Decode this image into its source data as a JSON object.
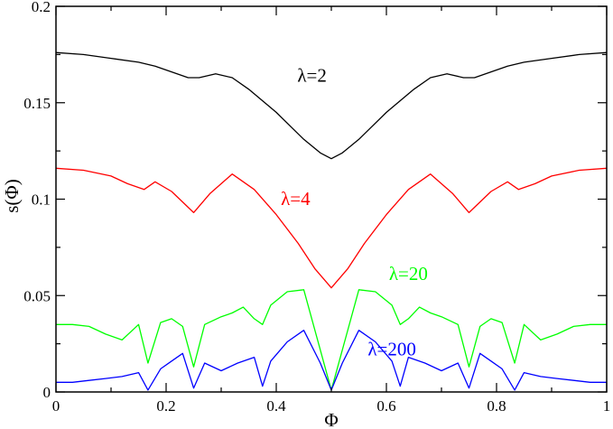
{
  "chart_data": {
    "type": "line",
    "title": "",
    "xlabel": "Φ",
    "ylabel": "s(Φ)",
    "xlim": [
      0,
      1
    ],
    "ylim": [
      0,
      0.2
    ],
    "x_ticks": [
      0,
      0.2,
      0.4,
      0.6,
      0.8,
      1
    ],
    "x_tick_labels": [
      "0",
      "0.2",
      "0.4",
      "0.6",
      "0.8",
      "1"
    ],
    "y_ticks": [
      0,
      0.05,
      0.1,
      0.15,
      0.2
    ],
    "y_tick_labels": [
      "0",
      "0.05",
      "0.1",
      "0.15",
      "0.2"
    ],
    "grid": false,
    "legend": "none",
    "series": [
      {
        "name": "λ=2",
        "color": "#000000",
        "x": [
          0,
          0.05,
          0.1,
          0.15,
          0.18,
          0.21,
          0.24,
          0.26,
          0.29,
          0.32,
          0.35,
          0.4,
          0.45,
          0.48,
          0.5
        ],
        "y": [
          0.176,
          0.175,
          0.173,
          0.171,
          0.169,
          0.166,
          0.163,
          0.163,
          0.165,
          0.163,
          0.157,
          0.145,
          0.131,
          0.124,
          0.121
        ]
      },
      {
        "name": "λ=4",
        "color": "#ff0000",
        "x": [
          0,
          0.05,
          0.1,
          0.13,
          0.16,
          0.18,
          0.21,
          0.25,
          0.28,
          0.32,
          0.36,
          0.4,
          0.44,
          0.47,
          0.5
        ],
        "y": [
          0.116,
          0.115,
          0.112,
          0.108,
          0.105,
          0.109,
          0.104,
          0.093,
          0.103,
          0.113,
          0.105,
          0.092,
          0.077,
          0.064,
          0.054
        ]
      },
      {
        "name": "λ=20",
        "color": "#00ff00",
        "x": [
          0,
          0.03,
          0.06,
          0.09,
          0.12,
          0.15,
          0.167,
          0.19,
          0.21,
          0.23,
          0.25,
          0.27,
          0.3,
          0.32,
          0.34,
          0.36,
          0.375,
          0.39,
          0.42,
          0.45,
          0.5
        ],
        "y": [
          0.035,
          0.035,
          0.034,
          0.03,
          0.027,
          0.035,
          0.015,
          0.036,
          0.038,
          0.034,
          0.013,
          0.035,
          0.039,
          0.041,
          0.044,
          0.038,
          0.035,
          0.045,
          0.052,
          0.053,
          0.001
        ]
      },
      {
        "name": "λ=200",
        "color": "#0000ff",
        "x": [
          0,
          0.03,
          0.06,
          0.09,
          0.12,
          0.15,
          0.167,
          0.19,
          0.21,
          0.23,
          0.25,
          0.27,
          0.3,
          0.33,
          0.36,
          0.375,
          0.39,
          0.42,
          0.45,
          0.48,
          0.5
        ],
        "y": [
          0.005,
          0.005,
          0.006,
          0.007,
          0.008,
          0.01,
          0.001,
          0.012,
          0.016,
          0.02,
          0.002,
          0.015,
          0.011,
          0.015,
          0.018,
          0.003,
          0.016,
          0.026,
          0.032,
          0.015,
          0.001
        ]
      }
    ],
    "annotations": [
      {
        "text": "λ=2",
        "color": "#000000",
        "x": 0.465,
        "y": 0.161
      },
      {
        "text": "λ=4",
        "color": "#ff0000",
        "x": 0.435,
        "y": 0.097
      },
      {
        "text": "λ=20",
        "color": "#00ff00",
        "x": 0.64,
        "y": 0.058
      },
      {
        "text": "λ=200",
        "color": "#0000ff",
        "x": 0.61,
        "y": 0.019
      }
    ],
    "symmetry": "mirror about Φ=0.5"
  }
}
